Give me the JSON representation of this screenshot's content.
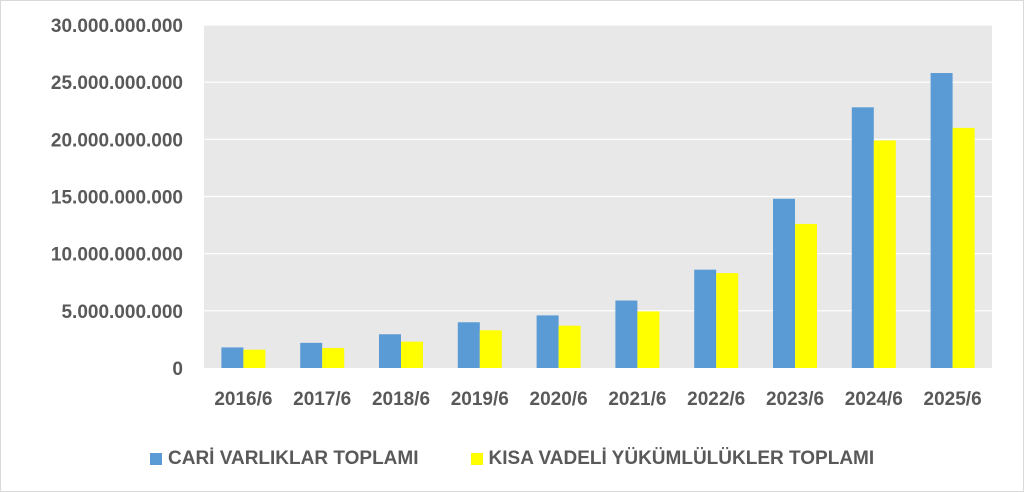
{
  "chart_data": {
    "type": "bar",
    "categories": [
      "2016/6",
      "2017/6",
      "2018/6",
      "2019/6",
      "2020/6",
      "2021/6",
      "2022/6",
      "2023/6",
      "2024/6",
      "2025/6"
    ],
    "series": [
      {
        "name": "CARİ VARLIKLAR TOPLAMI",
        "color": "#5b9bd5",
        "values": [
          1800000000,
          2200000000,
          2950000000,
          4000000000,
          4600000000,
          5900000000,
          8600000000,
          14800000000,
          22800000000,
          25800000000
        ]
      },
      {
        "name": "KISA VADELİ YÜKÜMLÜLÜKLER TOPLAMI",
        "color": "#ffff00",
        "values": [
          1600000000,
          1750000000,
          2300000000,
          3300000000,
          3700000000,
          4950000000,
          8300000000,
          12600000000,
          19900000000,
          21000000000
        ]
      }
    ],
    "y_ticks": [
      "0",
      "5.000.000.000",
      "10.000.000.000",
      "15.000.000.000",
      "20.000.000.000",
      "25.000.000.000",
      "30.000.000.000"
    ],
    "ylim": [
      0,
      30000000000
    ],
    "grid": true,
    "legend_position": "bottom",
    "plot_background": "#e8e8e8",
    "gridline_color": "#ffffff"
  }
}
